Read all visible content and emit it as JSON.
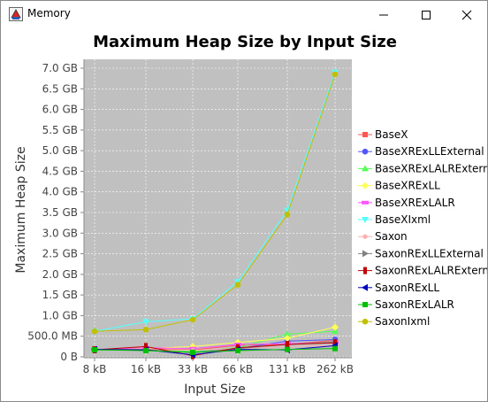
{
  "window": {
    "title": "Memory",
    "icon": "java-app-icon"
  },
  "chart_data": {
    "type": "line",
    "title": "Maximum Heap Size by Input Size",
    "xlabel": "Input Size",
    "ylabel": "Maximum Heap Size",
    "categories": [
      "8 kB",
      "16 kB",
      "33 kB",
      "66 kB",
      "131 kB",
      "262 kB"
    ],
    "ylim": [
      0,
      7.2
    ],
    "yticks": [
      {
        "v": 0,
        "label": "0 B"
      },
      {
        "v": 0.5,
        "label": "500.0 MB"
      },
      {
        "v": 1,
        "label": "1.0 GB"
      },
      {
        "v": 1.5,
        "label": "1.5 GB"
      },
      {
        "v": 2,
        "label": "2.0 GB"
      },
      {
        "v": 2.5,
        "label": "2.5 GB"
      },
      {
        "v": 3,
        "label": "3.0 GB"
      },
      {
        "v": 3.5,
        "label": "3.5 GB"
      },
      {
        "v": 4,
        "label": "4.0 GB"
      },
      {
        "v": 4.5,
        "label": "4.5 GB"
      },
      {
        "v": 5,
        "label": "5.0 GB"
      },
      {
        "v": 5.5,
        "label": "5.5 GB"
      },
      {
        "v": 6,
        "label": "6.0 GB"
      },
      {
        "v": 6.5,
        "label": "6.5 GB"
      },
      {
        "v": 7,
        "label": "7.0 GB"
      }
    ],
    "grid": true,
    "legend_position": "right",
    "series": [
      {
        "name": "BaseX",
        "color": "#ff5555",
        "marker": "square",
        "values": [
          0.18,
          0.2,
          0.17,
          0.28,
          0.3,
          0.4
        ]
      },
      {
        "name": "BaseXRExLLExternal",
        "color": "#5555ff",
        "marker": "circle",
        "values": [
          0.17,
          0.17,
          0.12,
          0.2,
          0.38,
          0.42
        ]
      },
      {
        "name": "BaseXRExLALRExternal",
        "color": "#55ff55",
        "marker": "triangle-up",
        "values": [
          0.17,
          0.16,
          0.13,
          0.22,
          0.55,
          0.62
        ]
      },
      {
        "name": "BaseXRExLL",
        "color": "#ffff55",
        "marker": "diamond",
        "values": [
          0.18,
          0.2,
          0.25,
          0.35,
          0.45,
          0.72
        ]
      },
      {
        "name": "BaseXRExLALR",
        "color": "#ff55ff",
        "marker": "rect",
        "values": [
          0.18,
          0.22,
          0.2,
          0.3,
          0.32,
          0.35
        ]
      },
      {
        "name": "BaseXIxml",
        "color": "#55ffff",
        "marker": "triangle-down",
        "values": [
          0.62,
          0.85,
          0.92,
          1.82,
          3.55,
          6.9
        ]
      },
      {
        "name": "Saxon",
        "color": "#ffafaf",
        "marker": "circle-small",
        "values": [
          0.18,
          0.18,
          0.16,
          0.2,
          0.25,
          0.28
        ]
      },
      {
        "name": "SaxonRExLLExternal",
        "color": "#808080",
        "marker": "triangle-right",
        "values": [
          0.18,
          0.18,
          0.1,
          0.2,
          0.3,
          0.36
        ]
      },
      {
        "name": "SaxonRExLALRExternal",
        "color": "#c00000",
        "marker": "rect-small",
        "values": [
          0.17,
          0.25,
          0.03,
          0.22,
          0.3,
          0.34
        ]
      },
      {
        "name": "SaxonRExLL",
        "color": "#0000c0",
        "marker": "triangle-left",
        "values": [
          0.18,
          0.17,
          0.05,
          0.18,
          0.17,
          0.27
        ]
      },
      {
        "name": "SaxonRExLALR",
        "color": "#00c000",
        "marker": "square",
        "values": [
          0.17,
          0.15,
          0.11,
          0.15,
          0.18,
          0.2
        ]
      },
      {
        "name": "SaxonIxml",
        "color": "#c0c000",
        "marker": "circle",
        "values": [
          0.62,
          0.66,
          0.9,
          1.75,
          3.45,
          6.85
        ]
      }
    ]
  }
}
